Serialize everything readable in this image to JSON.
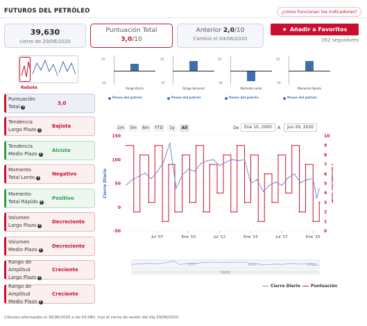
{
  "header": {
    "title": "FUTUROS DEL PETRÓLEO",
    "help_link": "¿cómo funcionan los indicadores?"
  },
  "summary": {
    "price": {
      "value": "39,630",
      "caption": "cierre de 29/06/2020"
    },
    "score": {
      "label": "Puntuación Total",
      "value": "3,0",
      "unit": "/10"
    },
    "previous": {
      "label": "Anterior",
      "value": "2,0",
      "unit": "/10",
      "caption": "Cambió el 04/06/2020"
    }
  },
  "favorites": {
    "button_label": "Añadir a Favoritos",
    "followers": "262 seguidores"
  },
  "thumbnail": {
    "label": "Rebote"
  },
  "mini_charts": [
    {
      "caption": "Rango Diario",
      "top": "10",
      "bottom": "-10",
      "bar_value": 5
    },
    {
      "caption": "Rango Semanal",
      "top": "10",
      "bottom": "-10",
      "bar_value": 7
    },
    {
      "caption": "Momento Lento",
      "top": "50",
      "bottom": "-50",
      "bar_value": -35
    },
    {
      "caption": "Momento Rápido",
      "top": "50",
      "bottom": "-50",
      "bar_value": 35
    }
  ],
  "mini_legend": "Pesos del patrón",
  "indicators": [
    {
      "name1": "Puntuación",
      "name2": "Total",
      "value": "3,0",
      "tone": "score"
    },
    {
      "name1": "Tendencia",
      "name2": "Largo Plazo",
      "value": "Bajista",
      "tone": "red"
    },
    {
      "name1": "Tendencia",
      "name2": "Medio Plazo",
      "value": "Alcista",
      "tone": "green"
    },
    {
      "name1": "Momento",
      "name2": "Total Lento",
      "value": "Negativo",
      "tone": "red"
    },
    {
      "name1": "Momento",
      "name2": "Total Rápido",
      "value": "Positivo",
      "tone": "green"
    },
    {
      "name1": "Volumen",
      "name2": "Largo Plazo",
      "value": "Decreciente",
      "tone": "red"
    },
    {
      "name1": "Volumen",
      "name2": "Medio Plazo",
      "value": "Decreciente",
      "tone": "red"
    },
    {
      "name1": "Rango de Amplitud",
      "name2": "Largo Plazo",
      "value": "Creciente",
      "tone": "red"
    },
    {
      "name1": "Rango de Amplitud",
      "name2": "Medio Plazo",
      "value": "Creciente",
      "tone": "red"
    }
  ],
  "range_selector": {
    "buttons": [
      "1m",
      "3m",
      "6m",
      "YTD",
      "1y",
      "All"
    ],
    "active": "All",
    "from_label": "De",
    "from_value": "Ene 10, 2005",
    "to_label": "A",
    "to_value": "Jun 29, 2020"
  },
  "chart_data": {
    "type": "line",
    "ylabel_left": "Cierre Diario",
    "ylabel_right": "Puntuación Total",
    "yticks_left": [
      "150",
      "100",
      "50",
      "0",
      "-50"
    ],
    "yticks_right": [
      "10",
      "9",
      "8",
      "7",
      "6",
      "5",
      "4",
      "3",
      "2",
      "1",
      "0"
    ],
    "xticks": [
      "Jul '07",
      "Ene '10",
      "Jul '12",
      "Ene '15",
      "Jul '17",
      "Ene '20"
    ],
    "navigator_ticks": [
      "2010",
      "2015",
      "2020"
    ],
    "ylim_left": [
      -50,
      150
    ],
    "ylim_right": [
      0,
      10
    ],
    "series": [
      {
        "name": "Cierre Diario",
        "color": "#7a8cc4",
        "x": [
          2005.0,
          2005.5,
          2006.0,
          2006.5,
          2007.0,
          2007.5,
          2008.0,
          2008.5,
          2009.0,
          2009.5,
          2010.0,
          2010.5,
          2011.0,
          2011.5,
          2012.0,
          2012.5,
          2013.0,
          2013.5,
          2014.0,
          2014.5,
          2015.0,
          2015.5,
          2016.0,
          2016.5,
          2017.0,
          2017.5,
          2018.0,
          2018.5,
          2019.0,
          2019.5,
          2020.0,
          2020.3,
          2020.5
        ],
        "values": [
          47,
          58,
          65,
          72,
          60,
          75,
          95,
          135,
          40,
          68,
          80,
          76,
          92,
          98,
          100,
          88,
          95,
          100,
          98,
          100,
          50,
          58,
          33,
          46,
          53,
          46,
          62,
          70,
          52,
          58,
          60,
          19,
          39
        ]
      },
      {
        "name": "Puntuación",
        "color": "#c8102e",
        "x": [
          2005.0,
          2005.6,
          2006.1,
          2006.8,
          2007.3,
          2007.9,
          2008.4,
          2008.9,
          2009.5,
          2010.1,
          2010.6,
          2011.2,
          2011.7,
          2012.3,
          2012.8,
          2013.4,
          2013.9,
          2014.5,
          2015.0,
          2015.6,
          2016.1,
          2016.7,
          2017.2,
          2017.8,
          2018.3,
          2018.9,
          2019.4,
          2020.0,
          2020.5
        ],
        "values": [
          9,
          2,
          8,
          3,
          9,
          1,
          7,
          2,
          8,
          3,
          9,
          2,
          7,
          4,
          8,
          2,
          9,
          3,
          8,
          1,
          6,
          3,
          8,
          4,
          9,
          2,
          7,
          1,
          3
        ]
      }
    ]
  },
  "chart_legend": {
    "close": "Cierre Diario",
    "score": "Puntuación"
  },
  "footer": "Cálculos efectuados el 30/06/2020 a las 03:08h. tras el cierre de sesión del día 29/06/2020."
}
